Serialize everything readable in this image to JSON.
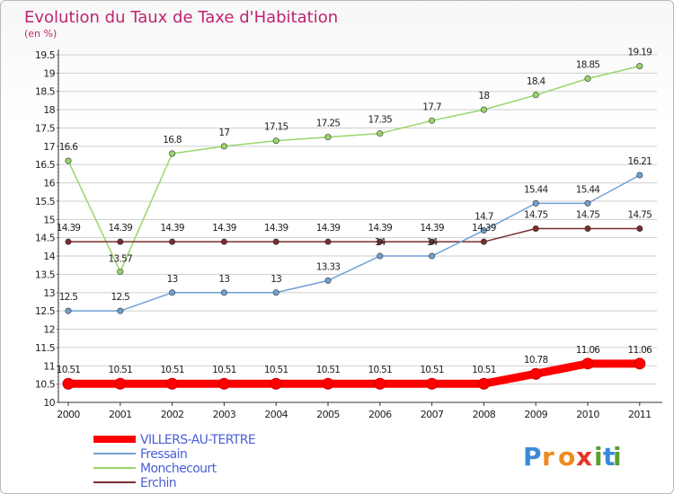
{
  "chart_data": {
    "type": "line",
    "title": "Evolution du Taux de Taxe d'Habitation",
    "subtitle": "(en %)",
    "x": [
      "2000",
      "2001",
      "2002",
      "2003",
      "2004",
      "2005",
      "2006",
      "2007",
      "2008",
      "2009",
      "2010",
      "2011"
    ],
    "ylim": [
      10,
      19.5
    ],
    "yticks": [
      "10",
      "10.5",
      "11",
      "11.5",
      "12",
      "12.5",
      "13",
      "13.5",
      "14",
      "14.5",
      "15",
      "15.5",
      "16",
      "16.5",
      "17",
      "17.5",
      "18",
      "18.5",
      "19",
      "19.5"
    ],
    "grid": "horizontal",
    "legend": "bottom-left",
    "series": [
      {
        "name": "VILLERS-AU-TERTRE",
        "color": "#ff0000",
        "values": [
          10.51,
          10.51,
          10.51,
          10.51,
          10.51,
          10.51,
          10.51,
          10.51,
          10.51,
          10.78,
          11.06,
          11.06
        ],
        "labels": [
          "10.51",
          "10.51",
          "10.51",
          "10.51",
          "10.51",
          "10.51",
          "10.51",
          "10.51",
          "10.51",
          "10.78",
          "11.06",
          "11.06"
        ]
      },
      {
        "name": "Fressain",
        "color": "#6fa0d2",
        "values": [
          12.5,
          12.5,
          13,
          13,
          13,
          13.33,
          14,
          14,
          14.7,
          15.44,
          15.44,
          16.21
        ],
        "labels": [
          "12.5",
          "12.5",
          "13",
          "13",
          "13",
          "13.33",
          "14",
          "14",
          "14.7",
          "15.44",
          "15.44",
          "16.21"
        ]
      },
      {
        "name": "Monchecourt",
        "color": "#9ad66a",
        "values": [
          16.6,
          13.57,
          16.8,
          17,
          17.15,
          17.25,
          17.35,
          17.7,
          18,
          18.4,
          18.85,
          19.19
        ],
        "labels": [
          "16.6",
          "13.57",
          "16.8",
          "17",
          "17.15",
          "17.25",
          "17.35",
          "17.7",
          "18",
          "18.4",
          "18.85",
          "19.19"
        ]
      },
      {
        "name": "Erchin",
        "color": "#7a2d2d",
        "values": [
          14.39,
          14.39,
          14.39,
          14.39,
          14.39,
          14.39,
          14.39,
          14.39,
          14.39,
          14.75,
          14.75,
          14.75
        ],
        "labels": [
          "14.39",
          "14.39",
          "14.39",
          "14.39",
          "14.39",
          "14.39",
          "14.39",
          "14.39",
          "14.39",
          "14.75",
          "14.75",
          "14.75"
        ]
      }
    ]
  },
  "colors": {
    "title": "#c0236f",
    "legend_text": "#4a5fd6",
    "grid": "#cfcfcf"
  },
  "logo": {
    "text": "Proxiti",
    "letters": [
      "P",
      "r",
      "o",
      "x",
      "i",
      "t",
      "i"
    ]
  }
}
